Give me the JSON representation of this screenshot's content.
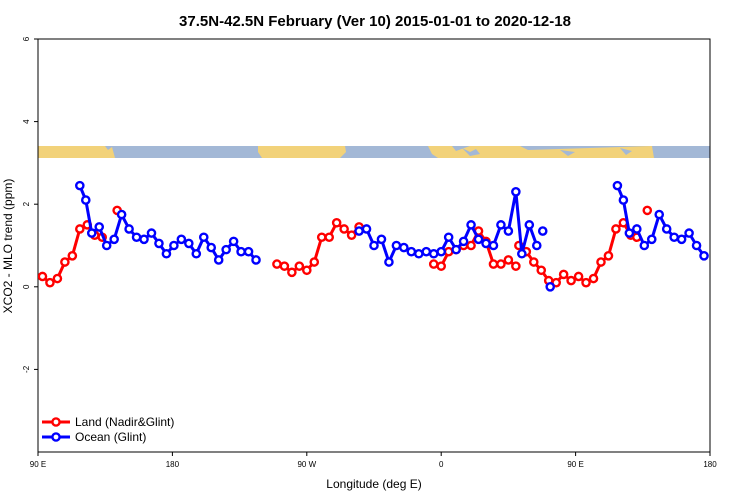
{
  "chart_data": {
    "type": "line",
    "title": "37.5N-42.5N February (Ver 10)   2015-01-01 to 2020-12-18",
    "xlabel": "Longitude (deg E)",
    "ylabel": "XCO2 - MLO trend (ppm)",
    "xlim": [
      90,
      540
    ],
    "ylim": [
      -4,
      6
    ],
    "x_ticks": [
      {
        "value": 90,
        "label": "90 E"
      },
      {
        "value": 180,
        "label": "180"
      },
      {
        "value": 270,
        "label": "90 W"
      },
      {
        "value": 360,
        "label": "0"
      },
      {
        "value": 450,
        "label": "90 E"
      },
      {
        "value": 540,
        "label": "180"
      }
    ],
    "y_ticks": [
      {
        "value": -2,
        "label": "-2"
      },
      {
        "value": 0,
        "label": "0"
      },
      {
        "value": 2,
        "label": "2"
      },
      {
        "value": 4,
        "label": "4"
      },
      {
        "value": 6,
        "label": "6"
      }
    ],
    "legend": {
      "position": "bottom-left"
    },
    "colors": {
      "land": "#ff0000",
      "ocean": "#0000ff",
      "map_land": "#f2d27a",
      "map_ocean": "#a3b8d6"
    },
    "series": [
      {
        "name": "Land (Nadir&Glint)",
        "color": "#ff0000",
        "segments": [
          [
            [
              93,
              0.25
            ],
            [
              98,
              0.1
            ],
            [
              103,
              0.2
            ],
            [
              108,
              0.6
            ],
            [
              113,
              0.75
            ],
            [
              118,
              1.4
            ],
            [
              123,
              1.5
            ],
            [
              128,
              1.25
            ],
            [
              133,
              1.2
            ]
          ],
          [
            [
              143,
              1.85
            ]
          ],
          [
            [
              250,
              0.55
            ],
            [
              255,
              0.5
            ],
            [
              260,
              0.35
            ],
            [
              265,
              0.5
            ],
            [
              270,
              0.4
            ],
            [
              275,
              0.6
            ],
            [
              280,
              1.2
            ],
            [
              285,
              1.2
            ],
            [
              290,
              1.55
            ],
            [
              295,
              1.4
            ],
            [
              300,
              1.25
            ],
            [
              305,
              1.45
            ]
          ],
          [
            [
              355,
              0.55
            ],
            [
              360,
              0.5
            ],
            [
              365,
              0.85
            ],
            [
              370,
              0.9
            ],
            [
              375,
              1.0
            ],
            [
              380,
              1.0
            ],
            [
              385,
              1.35
            ],
            [
              390,
              1.1
            ],
            [
              395,
              0.55
            ],
            [
              400,
              0.55
            ],
            [
              405,
              0.65
            ],
            [
              410,
              0.5
            ]
          ],
          [
            [
              412,
              1.0
            ],
            [
              417,
              0.85
            ],
            [
              422,
              0.6
            ],
            [
              427,
              0.4
            ],
            [
              432,
              0.15
            ],
            [
              437,
              0.1
            ],
            [
              442,
              0.3
            ],
            [
              447,
              0.15
            ],
            [
              452,
              0.25
            ],
            [
              457,
              0.1
            ],
            [
              462,
              0.2
            ],
            [
              467,
              0.6
            ],
            [
              472,
              0.75
            ],
            [
              477,
              1.4
            ],
            [
              482,
              1.55
            ],
            [
              487,
              1.25
            ],
            [
              491,
              1.2
            ]
          ],
          [
            [
              498,
              1.85
            ]
          ]
        ]
      },
      {
        "name": "Ocean (Glint)",
        "color": "#0000ff",
        "segments": [
          [
            [
              118,
              2.45
            ],
            [
              122,
              2.1
            ],
            [
              126,
              1.3
            ],
            [
              131,
              1.45
            ],
            [
              136,
              1.0
            ],
            [
              141,
              1.15
            ],
            [
              146,
              1.75
            ],
            [
              151,
              1.4
            ],
            [
              156,
              1.2
            ],
            [
              161,
              1.15
            ],
            [
              166,
              1.3
            ],
            [
              171,
              1.05
            ],
            [
              176,
              0.8
            ],
            [
              181,
              1.0
            ],
            [
              186,
              1.15
            ],
            [
              191,
              1.05
            ],
            [
              196,
              0.8
            ],
            [
              201,
              1.2
            ],
            [
              206,
              0.95
            ],
            [
              211,
              0.65
            ],
            [
              216,
              0.9
            ],
            [
              221,
              1.1
            ],
            [
              226,
              0.85
            ],
            [
              231,
              0.85
            ],
            [
              236,
              0.65
            ]
          ],
          [
            [
              305,
              1.35
            ],
            [
              310,
              1.4
            ],
            [
              315,
              1.0
            ],
            [
              320,
              1.15
            ],
            [
              325,
              0.6
            ],
            [
              330,
              1.0
            ],
            [
              335,
              0.95
            ],
            [
              340,
              0.85
            ],
            [
              345,
              0.8
            ],
            [
              350,
              0.85
            ],
            [
              355,
              0.8
            ],
            [
              360,
              0.85
            ],
            [
              365,
              1.2
            ],
            [
              370,
              0.9
            ],
            [
              375,
              1.1
            ],
            [
              380,
              1.5
            ],
            [
              385,
              1.15
            ],
            [
              390,
              1.05
            ],
            [
              395,
              1.0
            ],
            [
              400,
              1.5
            ],
            [
              405,
              1.35
            ],
            [
              410,
              2.3
            ],
            [
              414,
              0.8
            ],
            [
              419,
              1.5
            ],
            [
              424,
              1.0
            ]
          ],
          [
            [
              428,
              1.35
            ]
          ],
          [
            [
              433,
              0.0
            ]
          ],
          [
            [
              478,
              2.45
            ],
            [
              482,
              2.1
            ],
            [
              486,
              1.3
            ],
            [
              491,
              1.4
            ],
            [
              496,
              1.0
            ],
            [
              501,
              1.15
            ],
            [
              506,
              1.75
            ],
            [
              511,
              1.4
            ],
            [
              516,
              1.2
            ],
            [
              521,
              1.15
            ],
            [
              526,
              1.3
            ],
            [
              531,
              1.0
            ],
            [
              536,
              0.75
            ]
          ]
        ]
      }
    ]
  }
}
